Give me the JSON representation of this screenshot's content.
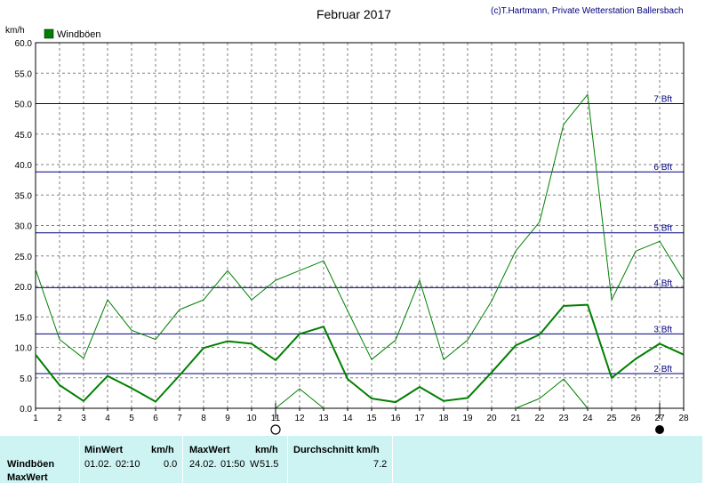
{
  "header": {
    "title": "Februar 2017",
    "credit": "(c)T.Hartmann, Private Wetterstation Ballersbach"
  },
  "chart_data": {
    "type": "line",
    "title": "Februar 2017",
    "ylabel": "km/h",
    "xlabel": "",
    "ylim": [
      0,
      60
    ],
    "yticks": [
      "0.0",
      "5.0",
      "10.0",
      "15.0",
      "20.0",
      "25.0",
      "30.0",
      "35.0",
      "40.0",
      "45.0",
      "50.0",
      "55.0",
      "60.0"
    ],
    "x": [
      1,
      2,
      3,
      4,
      5,
      6,
      7,
      8,
      9,
      10,
      11,
      12,
      13,
      14,
      15,
      16,
      17,
      18,
      19,
      20,
      21,
      22,
      23,
      24,
      25,
      26,
      27,
      28
    ],
    "grid": true,
    "legend": "top-left",
    "series": [
      {
        "name": "Windböen",
        "role": "average",
        "color": "#008000",
        "values": [
          8.8,
          3.8,
          1.2,
          5.3,
          3.3,
          1.1,
          5.4,
          9.9,
          11.0,
          10.6,
          7.9,
          12.2,
          13.4,
          4.8,
          1.6,
          1.0,
          3.5,
          1.2,
          1.7,
          5.9,
          10.3,
          12.1,
          16.8,
          17.0,
          5.0,
          8.1,
          10.6,
          8.8
        ]
      },
      {
        "role": "max",
        "color": "#008000",
        "values": [
          22.8,
          11.3,
          8.2,
          17.8,
          12.8,
          11.3,
          16.2,
          17.8,
          22.6,
          17.8,
          21.0,
          22.6,
          24.2,
          16.0,
          8.0,
          11.2,
          21.0,
          8.0,
          11.2,
          17.6,
          25.8,
          30.6,
          46.6,
          51.5,
          17.8,
          25.8,
          27.4,
          21.0
        ]
      },
      {
        "role": "min",
        "color": "#008000",
        "values": [
          null,
          null,
          null,
          null,
          null,
          null,
          null,
          null,
          null,
          null,
          0.0,
          3.2,
          0.0,
          null,
          null,
          null,
          null,
          null,
          null,
          null,
          0.0,
          1.6,
          4.8,
          0.0,
          null,
          null,
          null,
          null
        ]
      }
    ],
    "reference_lines": [
      {
        "label": "2 Bft",
        "value": 5.7
      },
      {
        "label": "3 Bft",
        "value": 12.2
      },
      {
        "label": "4 Bft",
        "value": 19.8
      },
      {
        "label": "5 Bft",
        "value": 28.8
      },
      {
        "label": "6 Bft",
        "value": 38.8
      },
      {
        "label": "7 Bft",
        "value": 50.0
      }
    ],
    "markers": [
      {
        "day": 11,
        "symbol": "new-moon-icon"
      },
      {
        "day": 27,
        "symbol": "full-moon-icon"
      }
    ]
  },
  "footer": {
    "row_label_1": "Windböen",
    "row_label_2": "MaxWert",
    "min_header": "MinWert",
    "min_unit": "km/h",
    "min_date": "01.02.",
    "min_time": "02:10",
    "min_value": "0.0",
    "max_header": "MaxWert",
    "max_unit": "km/h",
    "max_date": "24.02.",
    "max_time": "01:50",
    "max_dir": "W",
    "max_value": "51.5",
    "avg_header": "Durchschnitt km/h",
    "avg_value": "7.2"
  },
  "colors": {
    "series": "#008000",
    "reference": "#000080",
    "grid": "#808080",
    "footer_bg": "#cdf3f3"
  }
}
